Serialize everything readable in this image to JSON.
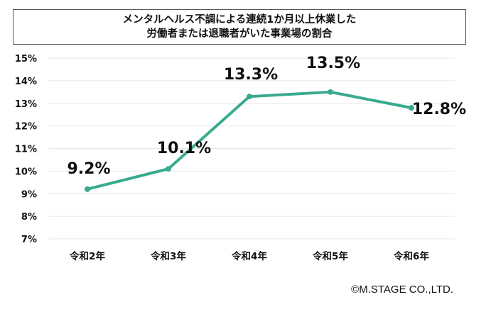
{
  "chart_data": {
    "type": "line",
    "title": [
      "メンタルヘルス不調による連続1か月以上休業した",
      "労働者または退職者がいた事業場の割合"
    ],
    "categories": [
      "令和2年",
      "令和3年",
      "令和4年",
      "令和5年",
      "令和6年"
    ],
    "values": [
      9.2,
      10.1,
      13.3,
      13.5,
      12.8
    ],
    "data_labels": [
      "9.2%",
      "10.1%",
      "13.3%",
      "13.5%",
      "12.8%"
    ],
    "yticks": [
      "7%",
      "8%",
      "9%",
      "10%",
      "11%",
      "12%",
      "13%",
      "14%",
      "15%"
    ],
    "ylim": [
      7,
      15
    ],
    "grid": true,
    "line_color": "#3aaa8e"
  },
  "credit": "©M.STAGE CO.,LTD."
}
